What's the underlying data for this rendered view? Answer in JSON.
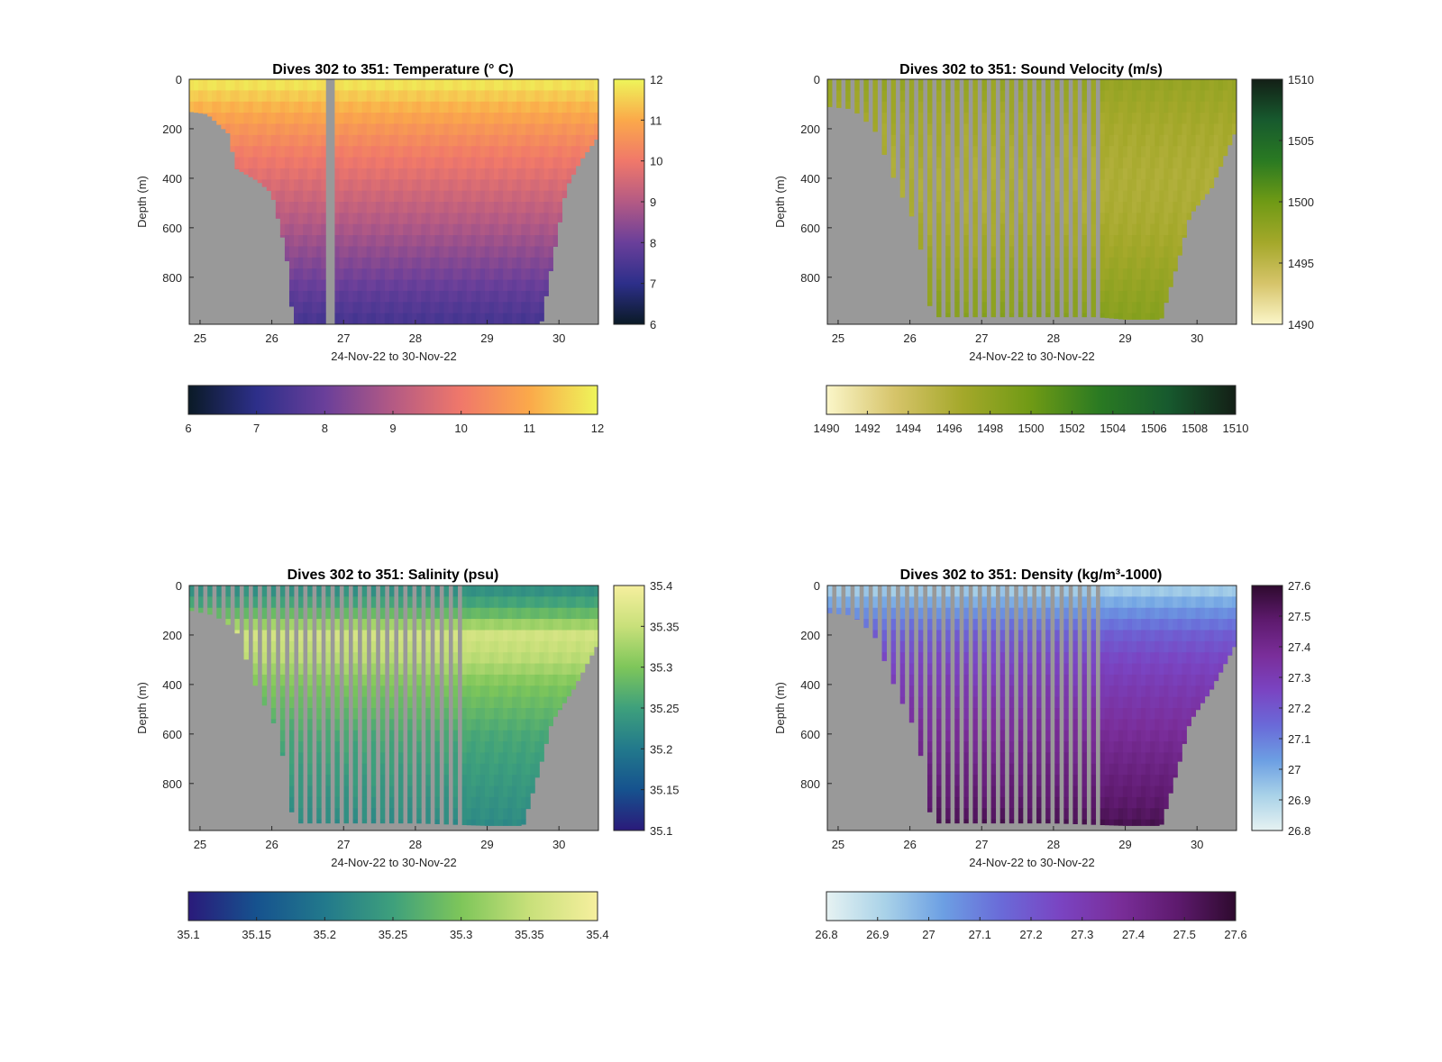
{
  "figure": {
    "panels": [
      {
        "title": "Dives 302 to 351: Temperature (° C)",
        "cbar_label": "",
        "xlabel": "24-Nov-22 to 30-Nov-22",
        "ylabel": "Depth (m)",
        "xticks": [
          "25",
          "26",
          "27",
          "28",
          "29",
          "30"
        ],
        "yticks": [
          "0",
          "200",
          "400",
          "600",
          "800"
        ],
        "cbar_ticks": [
          "6",
          "7",
          "8",
          "9",
          "10",
          "11",
          "12"
        ],
        "hbar_ticks": [
          "6",
          "7",
          "8",
          "9",
          "10",
          "11",
          "12"
        ],
        "colormap": [
          "#0a1a26",
          "#2d2f8a",
          "#6a3f9a",
          "#b45a84",
          "#f0786a",
          "#fba94a",
          "#eef55a"
        ],
        "data_gap_color": "#999999"
      },
      {
        "title": "Dives 302 to 351: Sound Velocity (m/s)",
        "cbar_label": "",
        "xlabel": "24-Nov-22 to 30-Nov-22",
        "ylabel": "Depth (m)",
        "xticks": [
          "25",
          "26",
          "27",
          "28",
          "29",
          "30"
        ],
        "yticks": [
          "0",
          "200",
          "400",
          "600",
          "800"
        ],
        "cbar_ticks": [
          "1490",
          "1495",
          "1500",
          "1505",
          "1510"
        ],
        "hbar_ticks": [
          "1490",
          "1492",
          "1494",
          "1496",
          "1498",
          "1500",
          "1502",
          "1504",
          "1506",
          "1508",
          "1510"
        ],
        "colormap": [
          "#fbf6c9",
          "#d6c46a",
          "#a4a82a",
          "#6f9a15",
          "#2a7a22",
          "#175a2e",
          "#131f16"
        ],
        "data_gap_color": "#999999"
      },
      {
        "title": "Dives 302 to 351: Salinity (psu)",
        "cbar_label": "",
        "xlabel": "24-Nov-22 to 30-Nov-22",
        "ylabel": "Depth (m)",
        "xticks": [
          "25",
          "26",
          "27",
          "28",
          "29",
          "30"
        ],
        "yticks": [
          "0",
          "200",
          "400",
          "600",
          "800"
        ],
        "cbar_ticks": [
          "35.1",
          "35.15",
          "35.2",
          "35.25",
          "35.3",
          "35.35",
          "35.4"
        ],
        "hbar_ticks": [
          "35.1",
          "35.15",
          "35.2",
          "35.25",
          "35.3",
          "35.35",
          "35.4"
        ],
        "colormap": [
          "#2a1a7a",
          "#16528e",
          "#22798c",
          "#3ea07c",
          "#7ec65a",
          "#c8e07a",
          "#f6ef9e"
        ],
        "data_gap_color": "#999999"
      },
      {
        "title": "Dives 302 to 351: Density (kg/m³-1000)",
        "cbar_label": "",
        "xlabel": "24-Nov-22 to 30-Nov-22",
        "ylabel": "Depth (m)",
        "xticks": [
          "25",
          "26",
          "27",
          "28",
          "29",
          "30"
        ],
        "yticks": [
          "0",
          "200",
          "400",
          "600",
          "800"
        ],
        "cbar_ticks": [
          "26.8",
          "26.9",
          "27",
          "27.1",
          "27.2",
          "27.3",
          "27.4",
          "27.5",
          "27.6"
        ],
        "hbar_ticks": [
          "26.8",
          "26.9",
          "27",
          "27.1",
          "27.2",
          "27.3",
          "27.4",
          "27.5",
          "27.6"
        ],
        "colormap": [
          "#e6f2f2",
          "#a9d2e8",
          "#6c9fe3",
          "#6a6ad8",
          "#7a44c2",
          "#7a2e9a",
          "#5e1a6e",
          "#2e0a2e"
        ],
        "data_gap_color": "#999999"
      }
    ]
  },
  "chart_data": [
    {
      "type": "heatmap",
      "title": "Dives 302 to 351: Temperature (° C)",
      "xlabel": "24-Nov-22 to 30-Nov-22",
      "ylabel": "Depth (m)",
      "xlim": [
        24.85,
        30.55
      ],
      "ylim": [
        990,
        0
      ],
      "x_ticks": [
        25,
        26,
        27,
        28,
        29,
        30
      ],
      "y_ticks": [
        0,
        200,
        400,
        600,
        800
      ],
      "clim": [
        6,
        12
      ],
      "colorbar_ticks": [
        6,
        7,
        8,
        9,
        10,
        11,
        12
      ],
      "vertical_profile": {
        "depth": [
          0,
          100,
          200,
          300,
          400,
          500,
          600,
          700,
          800,
          900,
          990
        ],
        "value": [
          11.9,
          11.2,
          10.6,
          10.1,
          9.7,
          9.3,
          8.9,
          8.5,
          8.1,
          7.7,
          7.4
        ]
      },
      "bottom_depth": {
        "x": [
          24.85,
          25.1,
          25.4,
          25.5,
          25.8,
          26.0,
          26.2,
          26.3,
          26.6,
          26.8,
          27.0,
          28.0,
          29.0,
          29.5,
          29.75,
          29.9,
          30.1,
          30.3,
          30.55
        ],
        "depth": [
          130,
          140,
          220,
          360,
          410,
          460,
          700,
          990,
          990,
          990,
          990,
          990,
          990,
          990,
          990,
          750,
          440,
          330,
          230
        ]
      },
      "gaps": [
        [
          26.75,
          26.88
        ]
      ],
      "colors": [
        "#0a1a26",
        "#2d2f8a",
        "#6a3f9a",
        "#b45a84",
        "#f0786a",
        "#fba94a",
        "#eef55a"
      ]
    },
    {
      "type": "heatmap",
      "title": "Dives 302 to 351: Sound Velocity (m/s)",
      "xlabel": "24-Nov-22 to 30-Nov-22",
      "ylabel": "Depth (m)",
      "xlim": [
        24.85,
        30.55
      ],
      "ylim": [
        990,
        0
      ],
      "x_ticks": [
        25,
        26,
        27,
        28,
        29,
        30
      ],
      "y_ticks": [
        0,
        200,
        400,
        600,
        800
      ],
      "clim": [
        1490,
        1510
      ],
      "colorbar_ticks": [
        1490,
        1495,
        1500,
        1505,
        1510
      ],
      "horizontal_colorbar_ticks": [
        1490,
        1492,
        1494,
        1496,
        1498,
        1500,
        1502,
        1504,
        1506,
        1508,
        1510
      ],
      "vertical_profile": {
        "depth": [
          0,
          100,
          200,
          300,
          400,
          500,
          600,
          700,
          800,
          900,
          990
        ],
        "value": [
          1497.6,
          1497.0,
          1496.5,
          1496.2,
          1496.0,
          1496.1,
          1496.4,
          1496.9,
          1497.5,
          1498.1,
          1498.6
        ]
      },
      "bottom_depth": {
        "x": [
          24.85,
          25.2,
          25.5,
          25.8,
          26.1,
          26.3,
          26.6,
          27.0,
          28.0,
          28.6,
          29.0,
          29.5,
          29.75,
          29.9,
          30.2,
          30.55
        ],
        "depth": [
          110,
          120,
          200,
          420,
          600,
          960,
          960,
          960,
          960,
          960,
          970,
          970,
          720,
          550,
          440,
          200
        ]
      },
      "colors": [
        "#fbf6c9",
        "#d6c46a",
        "#a4a82a",
        "#6f9a15",
        "#2a7a22",
        "#175a2e",
        "#131f16"
      ]
    },
    {
      "type": "heatmap",
      "title": "Dives 302 to 351: Salinity (psu)",
      "xlabel": "24-Nov-22 to 30-Nov-22",
      "ylabel": "Depth (m)",
      "xlim": [
        24.85,
        30.55
      ],
      "ylim": [
        990,
        0
      ],
      "x_ticks": [
        25,
        26,
        27,
        28,
        29,
        30
      ],
      "y_ticks": [
        0,
        200,
        400,
        600,
        800
      ],
      "clim": [
        35.1,
        35.4
      ],
      "colorbar_ticks": [
        35.1,
        35.15,
        35.2,
        35.25,
        35.3,
        35.35,
        35.4
      ],
      "vertical_profile": {
        "depth": [
          0,
          100,
          200,
          300,
          400,
          500,
          600,
          700,
          800,
          900,
          990
        ],
        "value": [
          35.22,
          35.27,
          35.36,
          35.34,
          35.3,
          35.28,
          35.26,
          35.25,
          35.24,
          35.23,
          35.22
        ]
      },
      "bottom_depth": {
        "x": [
          24.85,
          25.2,
          25.5,
          25.8,
          26.1,
          26.3,
          26.6,
          27.0,
          28.0,
          29.0,
          29.5,
          29.75,
          29.9,
          30.2,
          30.55
        ],
        "depth": [
          100,
          120,
          180,
          430,
          600,
          960,
          960,
          960,
          960,
          970,
          970,
          720,
          550,
          420,
          230
        ]
      },
      "colors": [
        "#2a1a7a",
        "#16528e",
        "#22798c",
        "#3ea07c",
        "#7ec65a",
        "#c8e07a",
        "#f6ef9e"
      ]
    },
    {
      "type": "heatmap",
      "title": "Dives 302 to 351: Density (kg/m³-1000)",
      "xlabel": "24-Nov-22 to 30-Nov-22",
      "ylabel": "Depth (m)",
      "xlim": [
        24.85,
        30.55
      ],
      "ylim": [
        990,
        0
      ],
      "x_ticks": [
        25,
        26,
        27,
        28,
        29,
        30
      ],
      "y_ticks": [
        0,
        200,
        400,
        600,
        800
      ],
      "clim": [
        26.8,
        27.6
      ],
      "colorbar_ticks": [
        26.8,
        26.9,
        27,
        27.1,
        27.2,
        27.3,
        27.4,
        27.5,
        27.6
      ],
      "vertical_profile": {
        "depth": [
          0,
          100,
          200,
          300,
          400,
          500,
          600,
          700,
          800,
          900,
          990
        ],
        "value": [
          26.9,
          27.05,
          27.18,
          27.25,
          27.3,
          27.34,
          27.38,
          27.42,
          27.46,
          27.5,
          27.55
        ]
      },
      "bottom_depth": {
        "x": [
          24.85,
          25.2,
          25.5,
          25.8,
          26.1,
          26.3,
          26.6,
          27.0,
          28.0,
          29.0,
          29.5,
          29.75,
          29.9,
          30.2,
          30.55
        ],
        "depth": [
          110,
          120,
          200,
          420,
          600,
          960,
          960,
          960,
          960,
          970,
          970,
          720,
          550,
          420,
          230
        ]
      },
      "colors": [
        "#e6f2f2",
        "#a9d2e8",
        "#6c9fe3",
        "#6a6ad8",
        "#7a44c2",
        "#7a2e9a",
        "#5e1a6e",
        "#2e0a2e"
      ]
    }
  ]
}
